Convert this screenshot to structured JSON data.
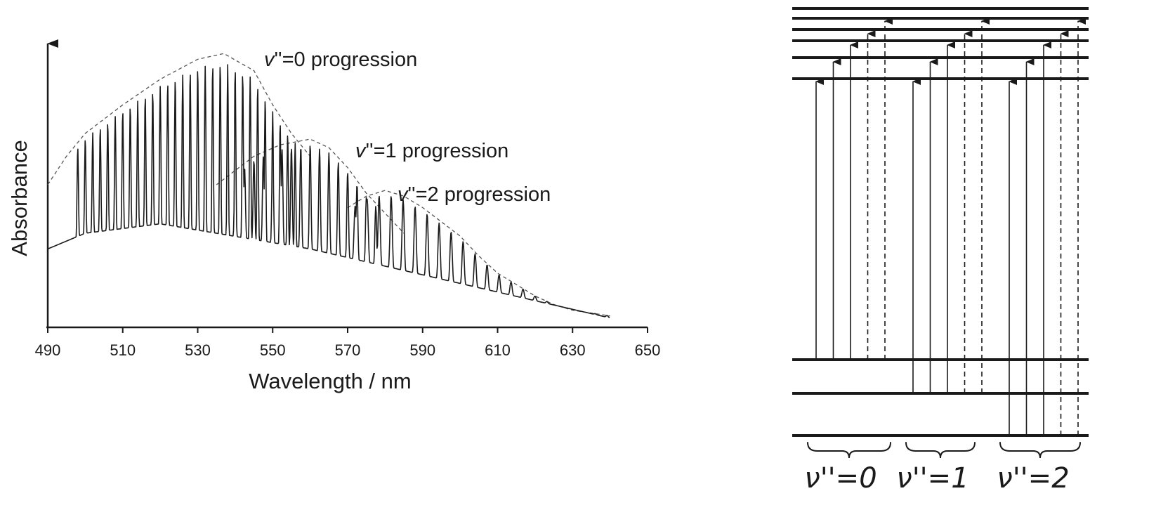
{
  "chart_data": [
    {
      "type": "line",
      "xlabel": "Wavelength / nm",
      "ylabel": "Absorbance",
      "xlim": [
        490,
        650
      ],
      "ylim": [
        0,
        1
      ],
      "x_ticks": [
        "490",
        "510",
        "530",
        "550",
        "570",
        "590",
        "610",
        "630",
        "650"
      ],
      "y_ticks": [],
      "grid": false,
      "series": [
        {
          "name": "v''=0 progression",
          "envelope": {
            "x": [
              490,
              495,
              500,
              505,
              510,
              520,
              530,
              537,
              545,
              550,
              555,
              560
            ],
            "y": [
              0.5,
              0.6,
              0.68,
              0.73,
              0.78,
              0.87,
              0.94,
              0.96,
              0.9,
              0.78,
              0.68,
              0.6
            ]
          },
          "bands_start_nm": 498,
          "bands_end_nm": 556,
          "band_spacing_nm": 2.0
        },
        {
          "name": "v''=1 progression",
          "envelope": {
            "x": [
              535,
              545,
              552,
              560,
              565,
              570,
              575,
              580,
              585
            ],
            "y": [
              0.5,
              0.6,
              0.64,
              0.66,
              0.63,
              0.56,
              0.47,
              0.4,
              0.33
            ]
          },
          "bands_start_nm": 540,
          "bands_end_nm": 578,
          "band_spacing_nm": 2.5
        },
        {
          "name": "v''=2 progression",
          "envelope": {
            "x": [
              570,
              575,
              580,
              585,
              590,
              595,
              600,
              605,
              610,
              615,
              620,
              625,
              630,
              635,
              640
            ],
            "y": [
              0.42,
              0.46,
              0.48,
              0.46,
              0.42,
              0.37,
              0.32,
              0.25,
              0.19,
              0.15,
              0.11,
              0.08,
              0.06,
              0.05,
              0.04
            ]
          },
          "bands_start_nm": 572,
          "bands_end_nm": 640,
          "band_spacing_nm": 3.2
        }
      ],
      "annotations": [
        {
          "prefix": "v",
          "suffix": "''=0 progression"
        },
        {
          "prefix": "v",
          "suffix": "''=1 progression"
        },
        {
          "prefix": "v",
          "suffix": "''=2 progression"
        }
      ]
    },
    {
      "type": "diagram",
      "upper_levels": 6,
      "lower_levels": 3,
      "groups": [
        {
          "label": "ν''=0",
          "solid_arrows": 3,
          "dashed_arrows": 2
        },
        {
          "label": "ν''=1",
          "solid_arrows": 3,
          "dashed_arrows": 2
        },
        {
          "label": "ν''=2",
          "solid_arrows": 3,
          "dashed_arrows": 2
        }
      ]
    }
  ]
}
